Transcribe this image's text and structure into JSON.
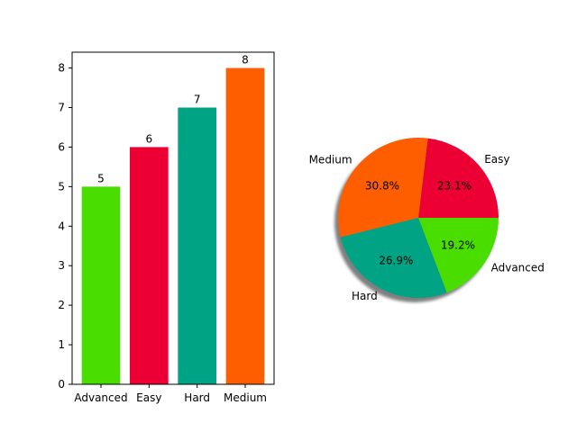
{
  "chart_data": [
    {
      "type": "bar",
      "categories": [
        "Advanced",
        "Easy",
        "Hard",
        "Medium"
      ],
      "values": [
        5,
        6,
        7,
        8
      ],
      "data_labels": [
        "5",
        "6",
        "7",
        "8"
      ],
      "colors": [
        "#4ade00",
        "#ec0033",
        "#00a383",
        "#ff5e00"
      ],
      "ylim": [
        0,
        8.4
      ],
      "yticks": [
        "0",
        "1",
        "2",
        "3",
        "4",
        "5",
        "6",
        "7",
        "8"
      ],
      "title": "",
      "xlabel": "",
      "ylabel": "",
      "grid": false
    },
    {
      "type": "pie",
      "categories": [
        "Easy",
        "Medium",
        "Hard",
        "Advanced"
      ],
      "values": [
        23.1,
        30.8,
        26.9,
        19.2
      ],
      "percent_labels": [
        "23.1%",
        "30.8%",
        "26.9%",
        "19.2%"
      ],
      "colors": [
        "#ec0033",
        "#ff5e00",
        "#00a383",
        "#4ade00"
      ],
      "shadow": true,
      "start_angle_deg": 0,
      "title": ""
    }
  ]
}
